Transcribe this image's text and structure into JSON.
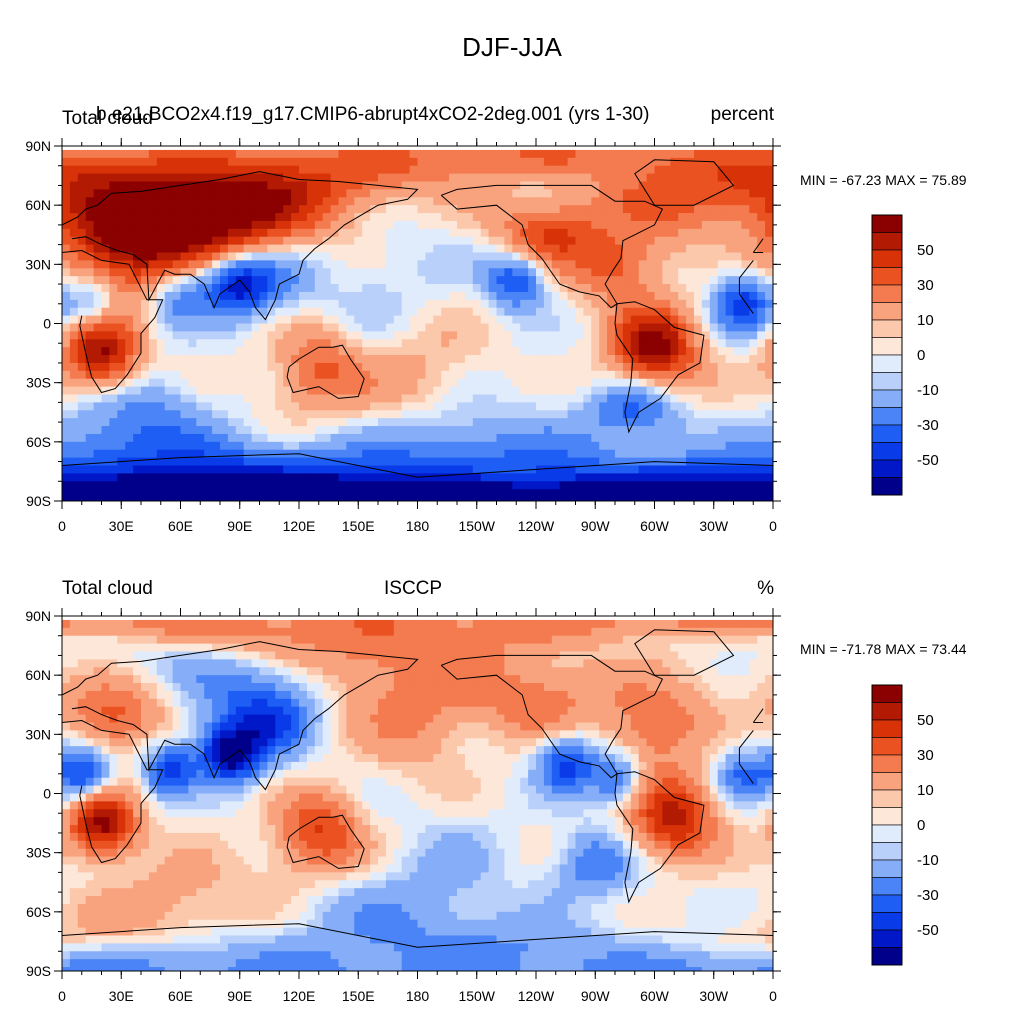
{
  "figure": {
    "title": "DJF-JJA"
  },
  "palette": [
    "#00008b",
    "#0018c8",
    "#0a3be8",
    "#1e5ef5",
    "#4a84f7",
    "#86aef8",
    "#b9d0fb",
    "#e0ecfc",
    "#fde7d9",
    "#fbc8ac",
    "#f9a27e",
    "#f47b4f",
    "#eb5222",
    "#d73208",
    "#b31a03",
    "#8b0000"
  ],
  "land_color": "#000000",
  "x_ticks": [
    "0",
    "30E",
    "60E",
    "90E",
    "120E",
    "150E",
    "180",
    "150W",
    "120W",
    "90W",
    "60W",
    "30W",
    "0"
  ],
  "y_ticks": [
    "90N",
    "60N",
    "30N",
    "0",
    "30S",
    "60S",
    "90S"
  ],
  "colorbar_labels": [
    "50",
    "30",
    "10",
    "0",
    "-10",
    "-30",
    "-50"
  ],
  "panels": [
    {
      "left_title": "Total cloud",
      "center_title": "b.e21.BCO2x4.f19_g17.CMIP6-abrupt4xCO2-2deg.001 (yrs 1-30)",
      "right_title": "percent",
      "min_max": "MIN = -67.23 MAX =  75.89",
      "field": [
        {
          "lon": 30,
          "lat": 42,
          "v": 50,
          "r": 28
        },
        {
          "lon": 60,
          "lat": 50,
          "v": 42,
          "r": 30
        },
        {
          "lon": 100,
          "lat": 55,
          "v": 38,
          "r": 30
        },
        {
          "lon": 20,
          "lat": -15,
          "v": 62,
          "r": 18
        },
        {
          "lon": 130,
          "lat": -22,
          "v": 32,
          "r": 20
        },
        {
          "lon": 300,
          "lat": -12,
          "v": 68,
          "r": 20
        },
        {
          "lon": 245,
          "lat": 45,
          "v": 38,
          "r": 18
        },
        {
          "lon": 280,
          "lat": 30,
          "v": 35,
          "r": 20
        },
        {
          "lon": 310,
          "lat": 60,
          "v": 25,
          "r": 18
        },
        {
          "lon": 88,
          "lat": 20,
          "v": -62,
          "r": 16
        },
        {
          "lon": 60,
          "lat": 15,
          "v": -35,
          "r": 16
        },
        {
          "lon": 110,
          "lat": 25,
          "v": -25,
          "r": 18
        },
        {
          "lon": 230,
          "lat": 22,
          "v": -42,
          "r": 14
        },
        {
          "lon": 345,
          "lat": 10,
          "v": -45,
          "r": 14
        },
        {
          "lon": 15,
          "lat": 10,
          "v": -28,
          "r": 14
        },
        {
          "lon": 290,
          "lat": -42,
          "v": -35,
          "r": 16
        },
        {
          "lon": 40,
          "lat": -45,
          "v": -18,
          "r": 22
        },
        {
          "lon": 180,
          "lat": -30,
          "v": 20,
          "r": 35
        },
        {
          "lon": 200,
          "lat": -80,
          "v": -42,
          "r": 40
        },
        {
          "lon": 40,
          "lat": -82,
          "v": -40,
          "r": 30
        },
        {
          "lon": 160,
          "lat": 10,
          "v": -10,
          "r": 35
        }
      ]
    },
    {
      "left_title": "Total cloud",
      "center_title": "ISCCP",
      "right_title": "%",
      "min_max": "MIN = -71.78 MAX =  73.44",
      "field": [
        {
          "lon": 20,
          "lat": -15,
          "v": 65,
          "r": 16
        },
        {
          "lon": 130,
          "lat": -20,
          "v": 42,
          "r": 20
        },
        {
          "lon": 310,
          "lat": -12,
          "v": 55,
          "r": 20
        },
        {
          "lon": 25,
          "lat": 38,
          "v": 35,
          "r": 18
        },
        {
          "lon": 300,
          "lat": 35,
          "v": 30,
          "r": 22
        },
        {
          "lon": 240,
          "lat": 45,
          "v": 25,
          "r": 20
        },
        {
          "lon": 180,
          "lat": 40,
          "v": 22,
          "r": 28
        },
        {
          "lon": 150,
          "lat": 80,
          "v": 28,
          "r": 25
        },
        {
          "lon": 85,
          "lat": 20,
          "v": -70,
          "r": 14
        },
        {
          "lon": 55,
          "lat": 12,
          "v": -48,
          "r": 12
        },
        {
          "lon": 105,
          "lat": 35,
          "v": -35,
          "r": 18
        },
        {
          "lon": 95,
          "lat": 55,
          "v": -22,
          "r": 22
        },
        {
          "lon": 10,
          "lat": 10,
          "v": -45,
          "r": 14
        },
        {
          "lon": 255,
          "lat": 15,
          "v": -45,
          "r": 14
        },
        {
          "lon": 280,
          "lat": 8,
          "v": -35,
          "r": 12
        },
        {
          "lon": 345,
          "lat": 10,
          "v": -30,
          "r": 12
        },
        {
          "lon": 270,
          "lat": -35,
          "v": -30,
          "r": 16
        },
        {
          "lon": 200,
          "lat": -40,
          "v": -15,
          "r": 25
        },
        {
          "lon": 180,
          "lat": -80,
          "v": -38,
          "r": 35
        },
        {
          "lon": 200,
          "lat": -60,
          "v": 18,
          "r": 30
        },
        {
          "lon": 60,
          "lat": -60,
          "v": 15,
          "r": 30
        }
      ]
    }
  ]
}
